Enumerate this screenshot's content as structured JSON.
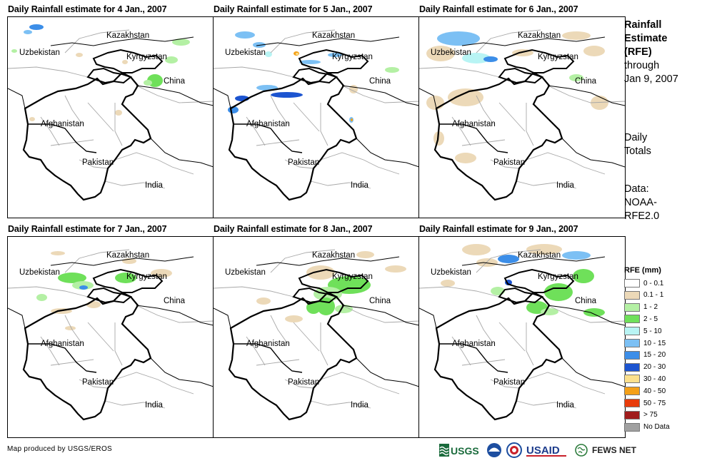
{
  "panels": [
    {
      "title": "Daily Rainfall estimate for 4 Jan., 2007",
      "day": 4
    },
    {
      "title": "Daily Rainfall estimate for 5 Jan., 2007",
      "day": 5
    },
    {
      "title": "Daily Rainfall estimate for 6 Jan., 2007",
      "day": 6
    },
    {
      "title": "Daily Rainfall estimate for 7 Jan., 2007",
      "day": 7
    },
    {
      "title": "Daily Rainfall estimate for 8 Jan., 2007",
      "day": 8
    },
    {
      "title": "Daily Rainfall estimate for 9 Jan., 2007",
      "day": 9
    }
  ],
  "countries": {
    "kazakhstan": "Kazakhstan",
    "uzbekistan": "Uzbekistan",
    "kyrgyzstan": "Kyrgyzstan",
    "china": "China",
    "afghanistan": "Afghanistan",
    "pakistan": "Pakistan",
    "india": "India"
  },
  "side": {
    "title_line1": "Rainfall",
    "title_line2": "Estimate",
    "title_line3": "(RFE)",
    "line4": "through",
    "line5": "Jan 9, 2007",
    "daily1": "Daily",
    "daily2": "Totals",
    "data1": "Data:",
    "data2": "NOAA-",
    "data3": "RFE2.0"
  },
  "legend": {
    "title": "RFE (mm)",
    "items": [
      {
        "label": "0 - 0.1",
        "color": "#ffffff"
      },
      {
        "label": "0.1 - 1",
        "color": "#ecd9b8"
      },
      {
        "label": "1 - 2",
        "color": "#b4f0a4"
      },
      {
        "label": "2 - 5",
        "color": "#6fe05a"
      },
      {
        "label": "5 - 10",
        "color": "#b8f4f4"
      },
      {
        "label": "10 - 15",
        "color": "#7cc0f4"
      },
      {
        "label": "15 - 20",
        "color": "#3c8ee8"
      },
      {
        "label": "20 - 30",
        "color": "#1c54d0"
      },
      {
        "label": "30 - 40",
        "color": "#fce08c"
      },
      {
        "label": "40 - 50",
        "color": "#f4a018"
      },
      {
        "label": "50 - 75",
        "color": "#e83c0c"
      },
      {
        "label": "> 75",
        "color": "#a01c1c"
      },
      {
        "label": "No Data",
        "color": "#a0a0a0"
      }
    ]
  },
  "credit": "Map produced by USGS/EROS",
  "logos": {
    "usgs": "USGS",
    "usaid": "USAID",
    "fewsnet": "FEWS NET"
  }
}
